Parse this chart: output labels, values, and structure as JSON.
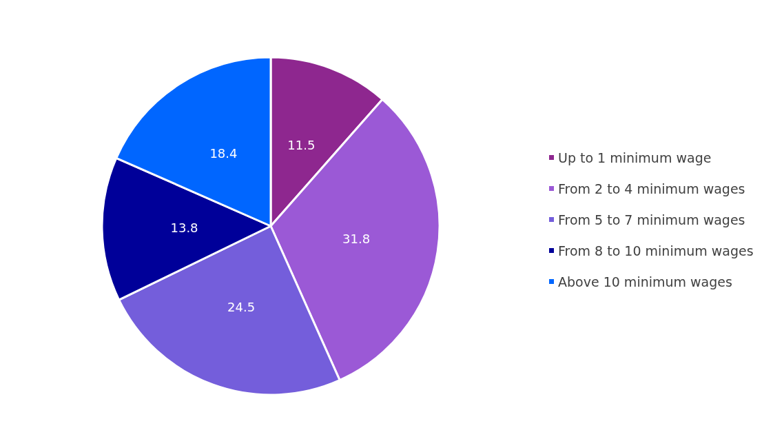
{
  "chart_data": {
    "type": "pie",
    "categories": [
      "Up to 1 minimum wage",
      "From 2 to 4 minimum wages",
      "From 5 to 7 minimum wages",
      "From 8 to 10 minimum wages",
      "Above 10 minimum wages"
    ],
    "values": [
      11.5,
      31.8,
      24.5,
      13.8,
      18.4
    ],
    "colors": [
      "#8e278f",
      "#9b59d6",
      "#745edb",
      "#000099",
      "#0066ff"
    ],
    "data_labels": true,
    "legend": "right"
  }
}
